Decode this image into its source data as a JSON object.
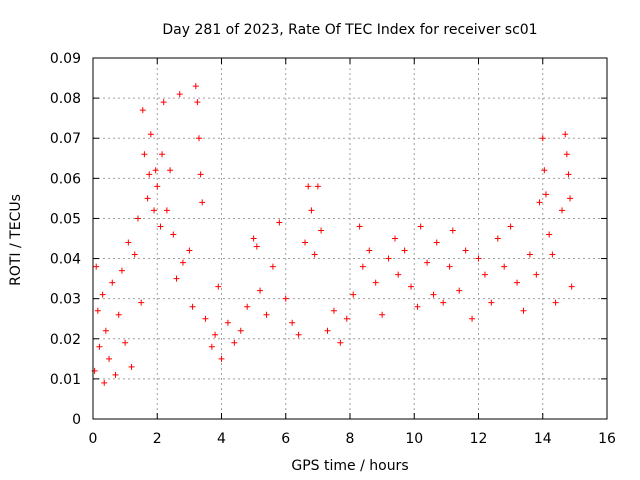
{
  "chart_data": {
    "type": "scatter",
    "title": "Day 281 of 2023, Rate Of TEC Index for receiver sc01",
    "xlabel": "GPS time / hours",
    "ylabel": "ROTI / TECUs",
    "xlim": [
      0,
      16
    ],
    "ylim": [
      0,
      0.09
    ],
    "xticks": [
      0,
      2,
      4,
      6,
      8,
      10,
      12,
      14,
      16
    ],
    "yticks": [
      0,
      0.01,
      0.02,
      0.03,
      0.04,
      0.05,
      0.06,
      0.07,
      0.08,
      0.09
    ],
    "xtick_labels": [
      "0",
      "2",
      "4",
      "6",
      "8",
      "10",
      "12",
      "14",
      "16"
    ],
    "ytick_labels": [
      "0",
      "0.01",
      "0.02",
      "0.03",
      "0.04",
      "0.05",
      "0.06",
      "0.07",
      "0.08",
      "0.09"
    ],
    "grid": true,
    "marker": "plus",
    "color": "#ff0000",
    "series": [
      {
        "name": "ROTI",
        "points": [
          [
            0.05,
            0.012
          ],
          [
            0.1,
            0.038
          ],
          [
            0.15,
            0.027
          ],
          [
            0.2,
            0.018
          ],
          [
            0.3,
            0.031
          ],
          [
            0.35,
            0.009
          ],
          [
            0.4,
            0.022
          ],
          [
            0.5,
            0.015
          ],
          [
            0.6,
            0.034
          ],
          [
            0.7,
            0.011
          ],
          [
            0.8,
            0.026
          ],
          [
            0.9,
            0.037
          ],
          [
            1.0,
            0.019
          ],
          [
            1.1,
            0.044
          ],
          [
            1.2,
            0.013
          ],
          [
            1.3,
            0.041
          ],
          [
            1.4,
            0.05
          ],
          [
            1.5,
            0.029
          ],
          [
            1.55,
            0.077
          ],
          [
            1.6,
            0.066
          ],
          [
            1.7,
            0.055
          ],
          [
            1.75,
            0.061
          ],
          [
            1.8,
            0.071
          ],
          [
            1.9,
            0.052
          ],
          [
            1.95,
            0.062
          ],
          [
            2.0,
            0.058
          ],
          [
            2.1,
            0.048
          ],
          [
            2.15,
            0.066
          ],
          [
            2.2,
            0.079
          ],
          [
            2.3,
            0.052
          ],
          [
            2.4,
            0.062
          ],
          [
            2.5,
            0.046
          ],
          [
            2.6,
            0.035
          ],
          [
            2.7,
            0.081
          ],
          [
            2.8,
            0.039
          ],
          [
            3.0,
            0.042
          ],
          [
            3.1,
            0.028
          ],
          [
            3.2,
            0.083
          ],
          [
            3.25,
            0.079
          ],
          [
            3.3,
            0.07
          ],
          [
            3.35,
            0.061
          ],
          [
            3.4,
            0.054
          ],
          [
            3.5,
            0.025
          ],
          [
            3.7,
            0.018
          ],
          [
            3.8,
            0.021
          ],
          [
            3.9,
            0.033
          ],
          [
            4.0,
            0.015
          ],
          [
            4.2,
            0.024
          ],
          [
            4.4,
            0.019
          ],
          [
            4.6,
            0.022
          ],
          [
            4.8,
            0.028
          ],
          [
            5.0,
            0.045
          ],
          [
            5.1,
            0.043
          ],
          [
            5.2,
            0.032
          ],
          [
            5.4,
            0.026
          ],
          [
            5.6,
            0.038
          ],
          [
            5.8,
            0.049
          ],
          [
            6.0,
            0.03
          ],
          [
            6.2,
            0.024
          ],
          [
            6.4,
            0.021
          ],
          [
            6.6,
            0.044
          ],
          [
            6.7,
            0.058
          ],
          [
            6.8,
            0.052
          ],
          [
            6.9,
            0.041
          ],
          [
            7.0,
            0.058
          ],
          [
            7.1,
            0.047
          ],
          [
            7.3,
            0.022
          ],
          [
            7.5,
            0.027
          ],
          [
            7.7,
            0.019
          ],
          [
            7.9,
            0.025
          ],
          [
            8.1,
            0.031
          ],
          [
            8.3,
            0.048
          ],
          [
            8.4,
            0.038
          ],
          [
            8.6,
            0.042
          ],
          [
            8.8,
            0.034
          ],
          [
            9.0,
            0.026
          ],
          [
            9.2,
            0.04
          ],
          [
            9.4,
            0.045
          ],
          [
            9.5,
            0.036
          ],
          [
            9.7,
            0.042
          ],
          [
            9.9,
            0.033
          ],
          [
            10.1,
            0.028
          ],
          [
            10.2,
            0.048
          ],
          [
            10.4,
            0.039
          ],
          [
            10.6,
            0.031
          ],
          [
            10.7,
            0.044
          ],
          [
            10.9,
            0.029
          ],
          [
            11.1,
            0.038
          ],
          [
            11.2,
            0.047
          ],
          [
            11.4,
            0.032
          ],
          [
            11.6,
            0.042
          ],
          [
            11.8,
            0.025
          ],
          [
            12.0,
            0.04
          ],
          [
            12.2,
            0.036
          ],
          [
            12.4,
            0.029
          ],
          [
            12.6,
            0.045
          ],
          [
            12.8,
            0.038
          ],
          [
            13.0,
            0.048
          ],
          [
            13.2,
            0.034
          ],
          [
            13.4,
            0.027
          ],
          [
            13.6,
            0.041
          ],
          [
            13.8,
            0.036
          ],
          [
            13.9,
            0.054
          ],
          [
            14.0,
            0.07
          ],
          [
            14.05,
            0.062
          ],
          [
            14.1,
            0.056
          ],
          [
            14.2,
            0.046
          ],
          [
            14.3,
            0.041
          ],
          [
            14.4,
            0.029
          ],
          [
            14.6,
            0.052
          ],
          [
            14.7,
            0.071
          ],
          [
            14.75,
            0.066
          ],
          [
            14.8,
            0.061
          ],
          [
            14.85,
            0.055
          ],
          [
            14.9,
            0.033
          ]
        ]
      }
    ]
  }
}
